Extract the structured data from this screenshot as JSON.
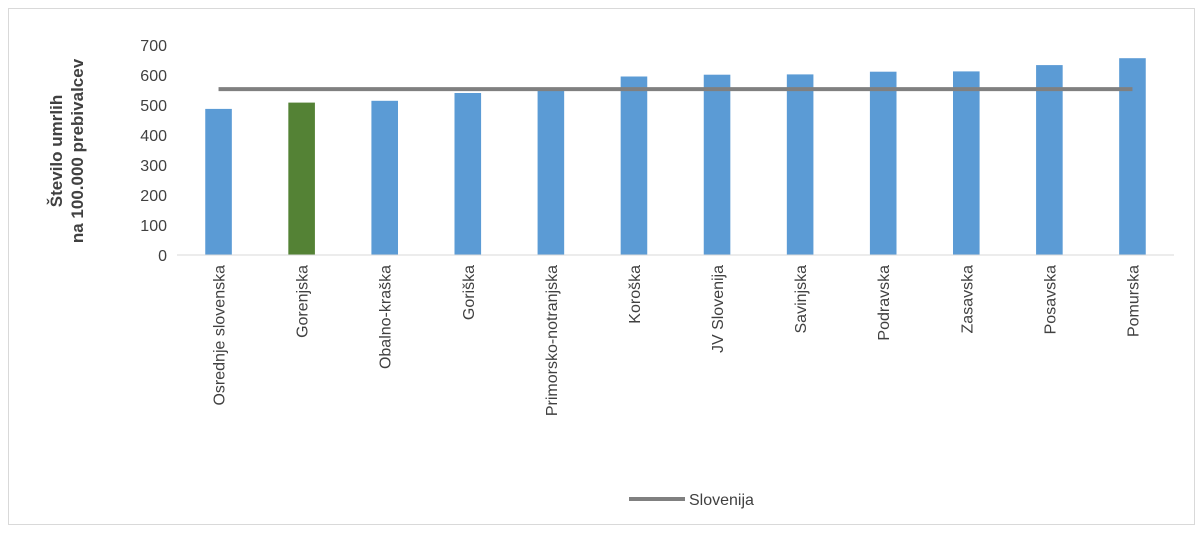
{
  "chart_data": {
    "type": "bar",
    "title": "",
    "xlabel": "",
    "ylabel_lines": [
      "Število umrlih",
      "na 100.000 prebivalcev"
    ],
    "ylim": [
      0,
      700
    ],
    "yticks": [
      "0",
      "100",
      "200",
      "300",
      "400",
      "500",
      "600",
      "700"
    ],
    "categories": [
      "Osrednje slovenska",
      "Gorenjska",
      "Obalno-kraška",
      "Goriška",
      "Primorsko-notranjska",
      "Koroška",
      "JV Slovenija",
      "Savinjska",
      "Podravska",
      "Zasavska",
      "Posavska",
      "Pomurska"
    ],
    "values": [
      487,
      508,
      514,
      540,
      558,
      595,
      601,
      602,
      611,
      612,
      633,
      656
    ],
    "highlight_category": "Gorenjska",
    "reference_line": {
      "name": "Slovenija",
      "value": 553
    },
    "grid": false,
    "legend_position": "bottom",
    "colors": {
      "bar": "#5b9bd5",
      "highlight": "#548235",
      "reference_line": "#808080",
      "text": "#404040",
      "axis": "#d9d9d9"
    }
  }
}
